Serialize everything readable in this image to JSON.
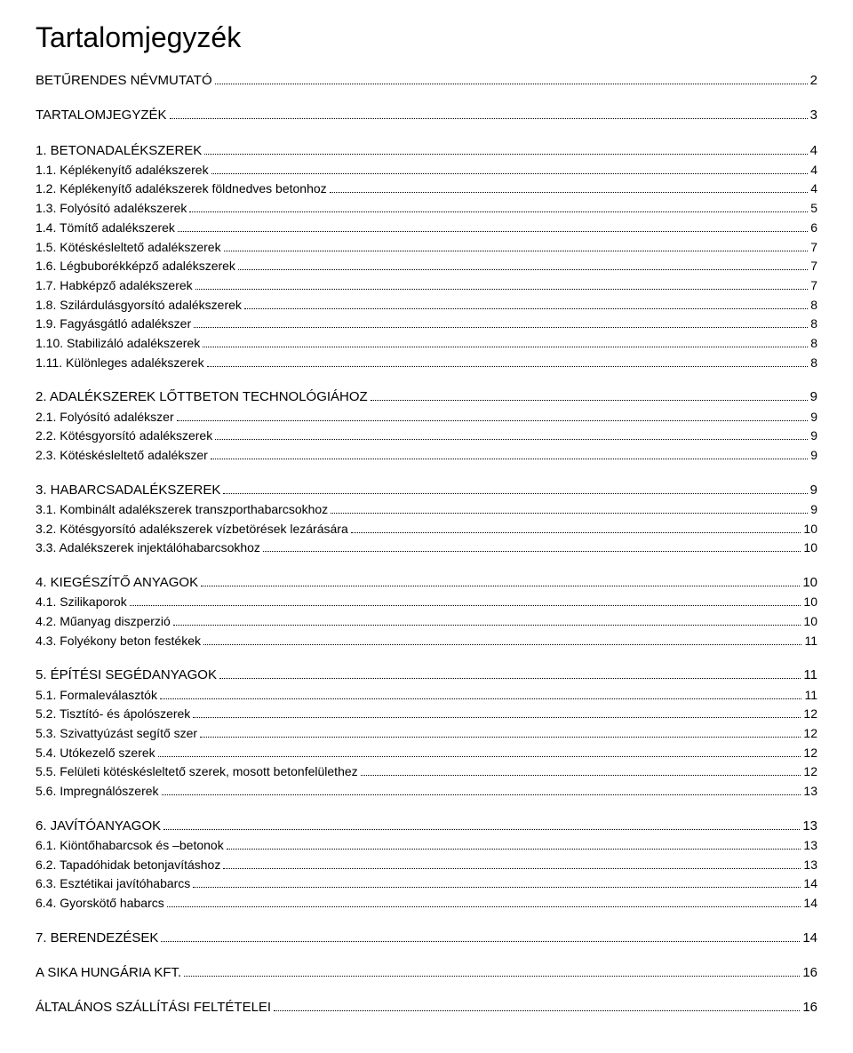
{
  "title": "Tartalomjegyzék",
  "entries": [
    {
      "level": 0,
      "label": "BETŰRENDES NÉVMUTATÓ",
      "page": "2"
    },
    {
      "level": 0,
      "label": "TARTALOMJEGYZÉK",
      "page": "3"
    },
    {
      "level": 0,
      "label": "1. BETONADALÉKSZEREK",
      "page": "4"
    },
    {
      "level": 1,
      "label": "1.1. Képlékenyítő adalékszerek",
      "page": "4"
    },
    {
      "level": 1,
      "label": "1.2. Képlékenyítő adalékszerek földnedves betonhoz",
      "page": "4"
    },
    {
      "level": 1,
      "label": "1.3. Folyósító adalékszerek",
      "page": "5"
    },
    {
      "level": 1,
      "label": "1.4. Tömítő adalékszerek",
      "page": "6"
    },
    {
      "level": 1,
      "label": "1.5. Kötéskésleltető adalékszerek",
      "page": "7"
    },
    {
      "level": 1,
      "label": "1.6. Légbuborékképző adalékszerek",
      "page": "7"
    },
    {
      "level": 1,
      "label": "1.7. Habképző adalékszerek",
      "page": "7"
    },
    {
      "level": 1,
      "label": "1.8. Szilárdulásgyorsító adalékszerek",
      "page": "8"
    },
    {
      "level": 1,
      "label": "1.9. Fagyásgátló adalékszer",
      "page": "8"
    },
    {
      "level": 1,
      "label": "1.10. Stabilizáló adalékszerek",
      "page": "8"
    },
    {
      "level": 1,
      "label": "1.11. Különleges adalékszerek",
      "page": "8"
    },
    {
      "level": 0,
      "label": "2. ADALÉKSZEREK LŐTTBETON TECHNOLÓGIÁHOZ",
      "page": "9"
    },
    {
      "level": 1,
      "label": "2.1. Folyósító adalékszer",
      "page": "9"
    },
    {
      "level": 1,
      "label": "2.2. Kötésgyorsító adalékszerek",
      "page": "9"
    },
    {
      "level": 1,
      "label": "2.3. Kötéskésleltető adalékszer",
      "page": "9"
    },
    {
      "level": 0,
      "label": "3. HABARCSADALÉKSZEREK",
      "page": "9"
    },
    {
      "level": 1,
      "label": "3.1. Kombinált adalékszerek transzporthabarcsokhoz",
      "page": "9"
    },
    {
      "level": 1,
      "label": "3.2. Kötésgyorsító adalékszerek vízbetörések lezárására",
      "page": "10"
    },
    {
      "level": 1,
      "label": "3.3. Adalékszerek injektálóhabarcsokhoz",
      "page": "10"
    },
    {
      "level": 0,
      "label": "4. KIEGÉSZÍTŐ ANYAGOK",
      "page": "10"
    },
    {
      "level": 1,
      "label": "4.1. Szilikaporok",
      "page": "10"
    },
    {
      "level": 1,
      "label": "4.2. Műanyag diszperzió",
      "page": "10"
    },
    {
      "level": 1,
      "label": "4.3. Folyékony beton festékek",
      "page": "11"
    },
    {
      "level": 0,
      "label": "5. ÉPÍTÉSI SEGÉDANYAGOK",
      "page": "11"
    },
    {
      "level": 1,
      "label": "5.1. Formaleválasztók",
      "page": "11"
    },
    {
      "level": 1,
      "label": "5.2. Tisztító- és ápolószerek",
      "page": "12"
    },
    {
      "level": 1,
      "label": "5.3. Szivattyúzást segítő szer",
      "page": "12"
    },
    {
      "level": 1,
      "label": "5.4. Utókezelő szerek",
      "page": "12"
    },
    {
      "level": 1,
      "label": "5.5. Felületi kötéskésleltető szerek, mosott betonfelülethez",
      "page": "12"
    },
    {
      "level": 1,
      "label": "5.6. Impregnálószerek",
      "page": "13"
    },
    {
      "level": 0,
      "label": "6. JAVÍTÓANYAGOK",
      "page": "13"
    },
    {
      "level": 1,
      "label": "6.1. Kiöntőhabarcsok és –betonok",
      "page": "13"
    },
    {
      "level": 1,
      "label": "6.2. Tapadóhidak betonjavításhoz",
      "page": "13"
    },
    {
      "level": 1,
      "label": "6.3. Esztétikai javítóhabarcs",
      "page": "14"
    },
    {
      "level": 1,
      "label": "6.4. Gyorskötő habarcs",
      "page": "14"
    },
    {
      "level": 0,
      "label": "7. BERENDEZÉSEK",
      "page": "14"
    },
    {
      "level": 0,
      "label": "A SIKA HUNGÁRIA KFT.",
      "page": "16"
    },
    {
      "level": 0,
      "label": "ÁLTALÁNOS SZÁLLÍTÁSI FELTÉTELEI",
      "page": "16"
    }
  ]
}
